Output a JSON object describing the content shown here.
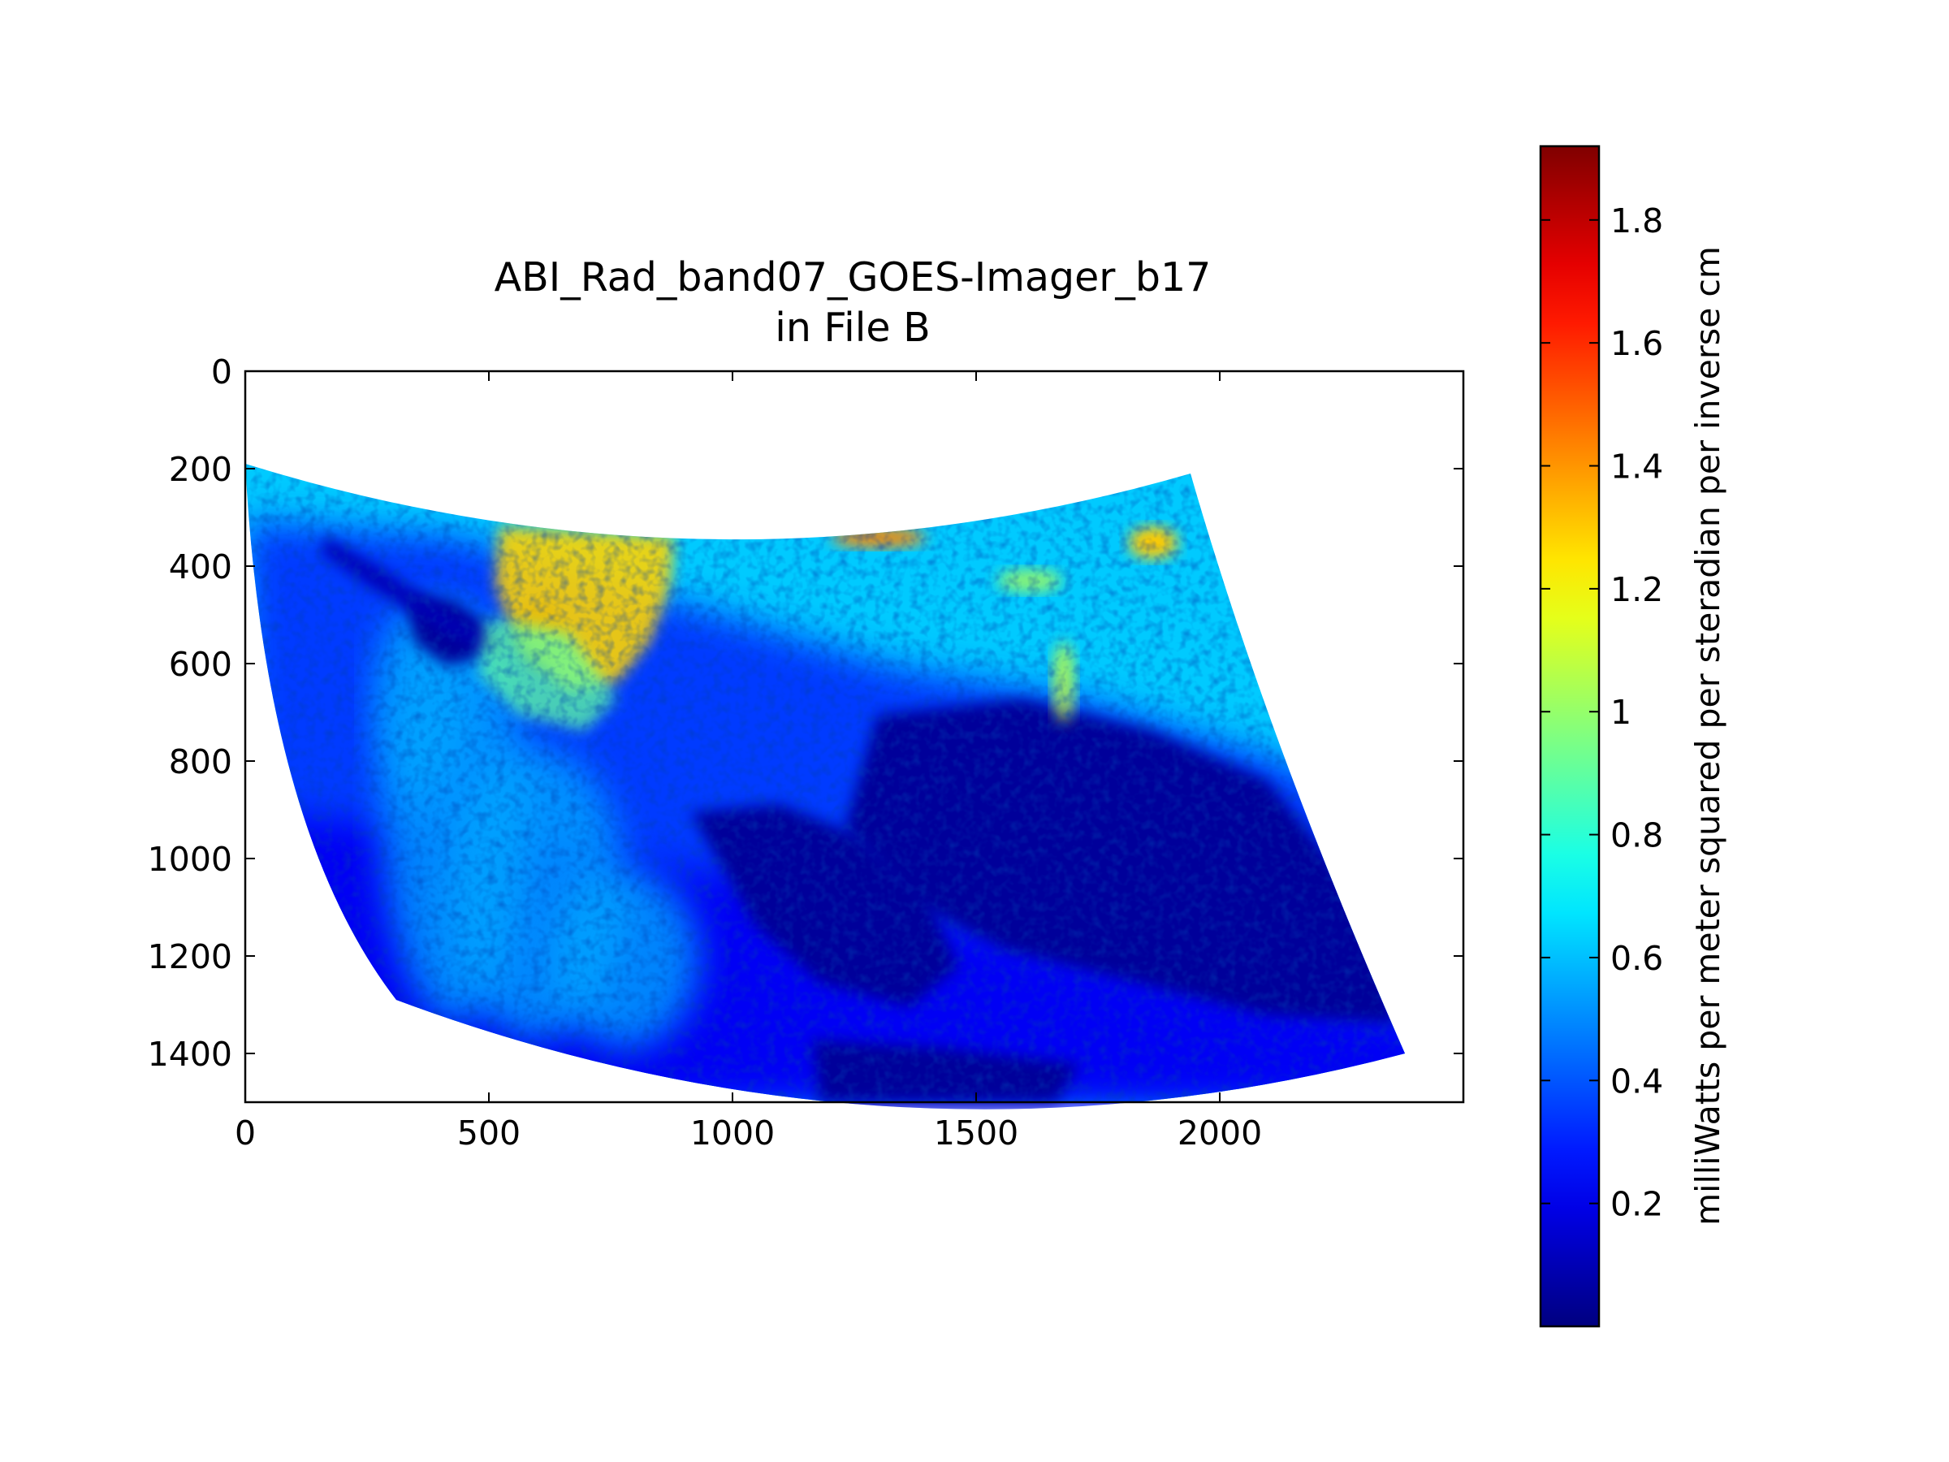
{
  "chart_data": {
    "type": "heatmap",
    "title": "ABI_Rad_band07_GOES-Imager_b17",
    "subtitle": "in File B",
    "xlabel": "",
    "ylabel": "",
    "xlim": [
      0,
      2500
    ],
    "ylim": [
      1500,
      0
    ],
    "x_ticks": [
      "0",
      "500",
      "1000",
      "1500",
      "2000"
    ],
    "y_ticks": [
      "0",
      "200",
      "400",
      "600",
      "800",
      "1000",
      "1200",
      "1400"
    ],
    "x_tick_values": [
      0,
      500,
      1000,
      1500,
      2000
    ],
    "y_tick_values": [
      0,
      200,
      400,
      600,
      800,
      1000,
      1200,
      1400
    ],
    "colormap": "jet",
    "colorbar": {
      "label": "milliWatts per meter squared per steradian per inverse cm",
      "range": [
        0.0,
        1.92
      ],
      "ticks": [
        "0.2",
        "0.4",
        "0.6",
        "0.8",
        "1",
        "1.2",
        "1.4",
        "1.6",
        "1.8"
      ],
      "tick_values": [
        0.2,
        0.4,
        0.6,
        0.8,
        1.0,
        1.2,
        1.4,
        1.6,
        1.8
      ]
    },
    "data_footprint": {
      "corners": [
        [
          0,
          190
        ],
        [
          1940,
          210
        ],
        [
          2380,
          1400
        ],
        [
          310,
          1290
        ]
      ],
      "top_edge_min_y": 345,
      "bottom_edge_max_y": 1510
    },
    "regions": [
      {
        "name": "background-disk",
        "value": 0.62
      },
      {
        "name": "cold-cloud-band",
        "value": 0.05
      },
      {
        "name": "warm-land",
        "value": 1.28
      },
      {
        "name": "hot-spot",
        "value": 1.42
      },
      {
        "name": "mid-clouds",
        "value": 0.35
      }
    ]
  }
}
